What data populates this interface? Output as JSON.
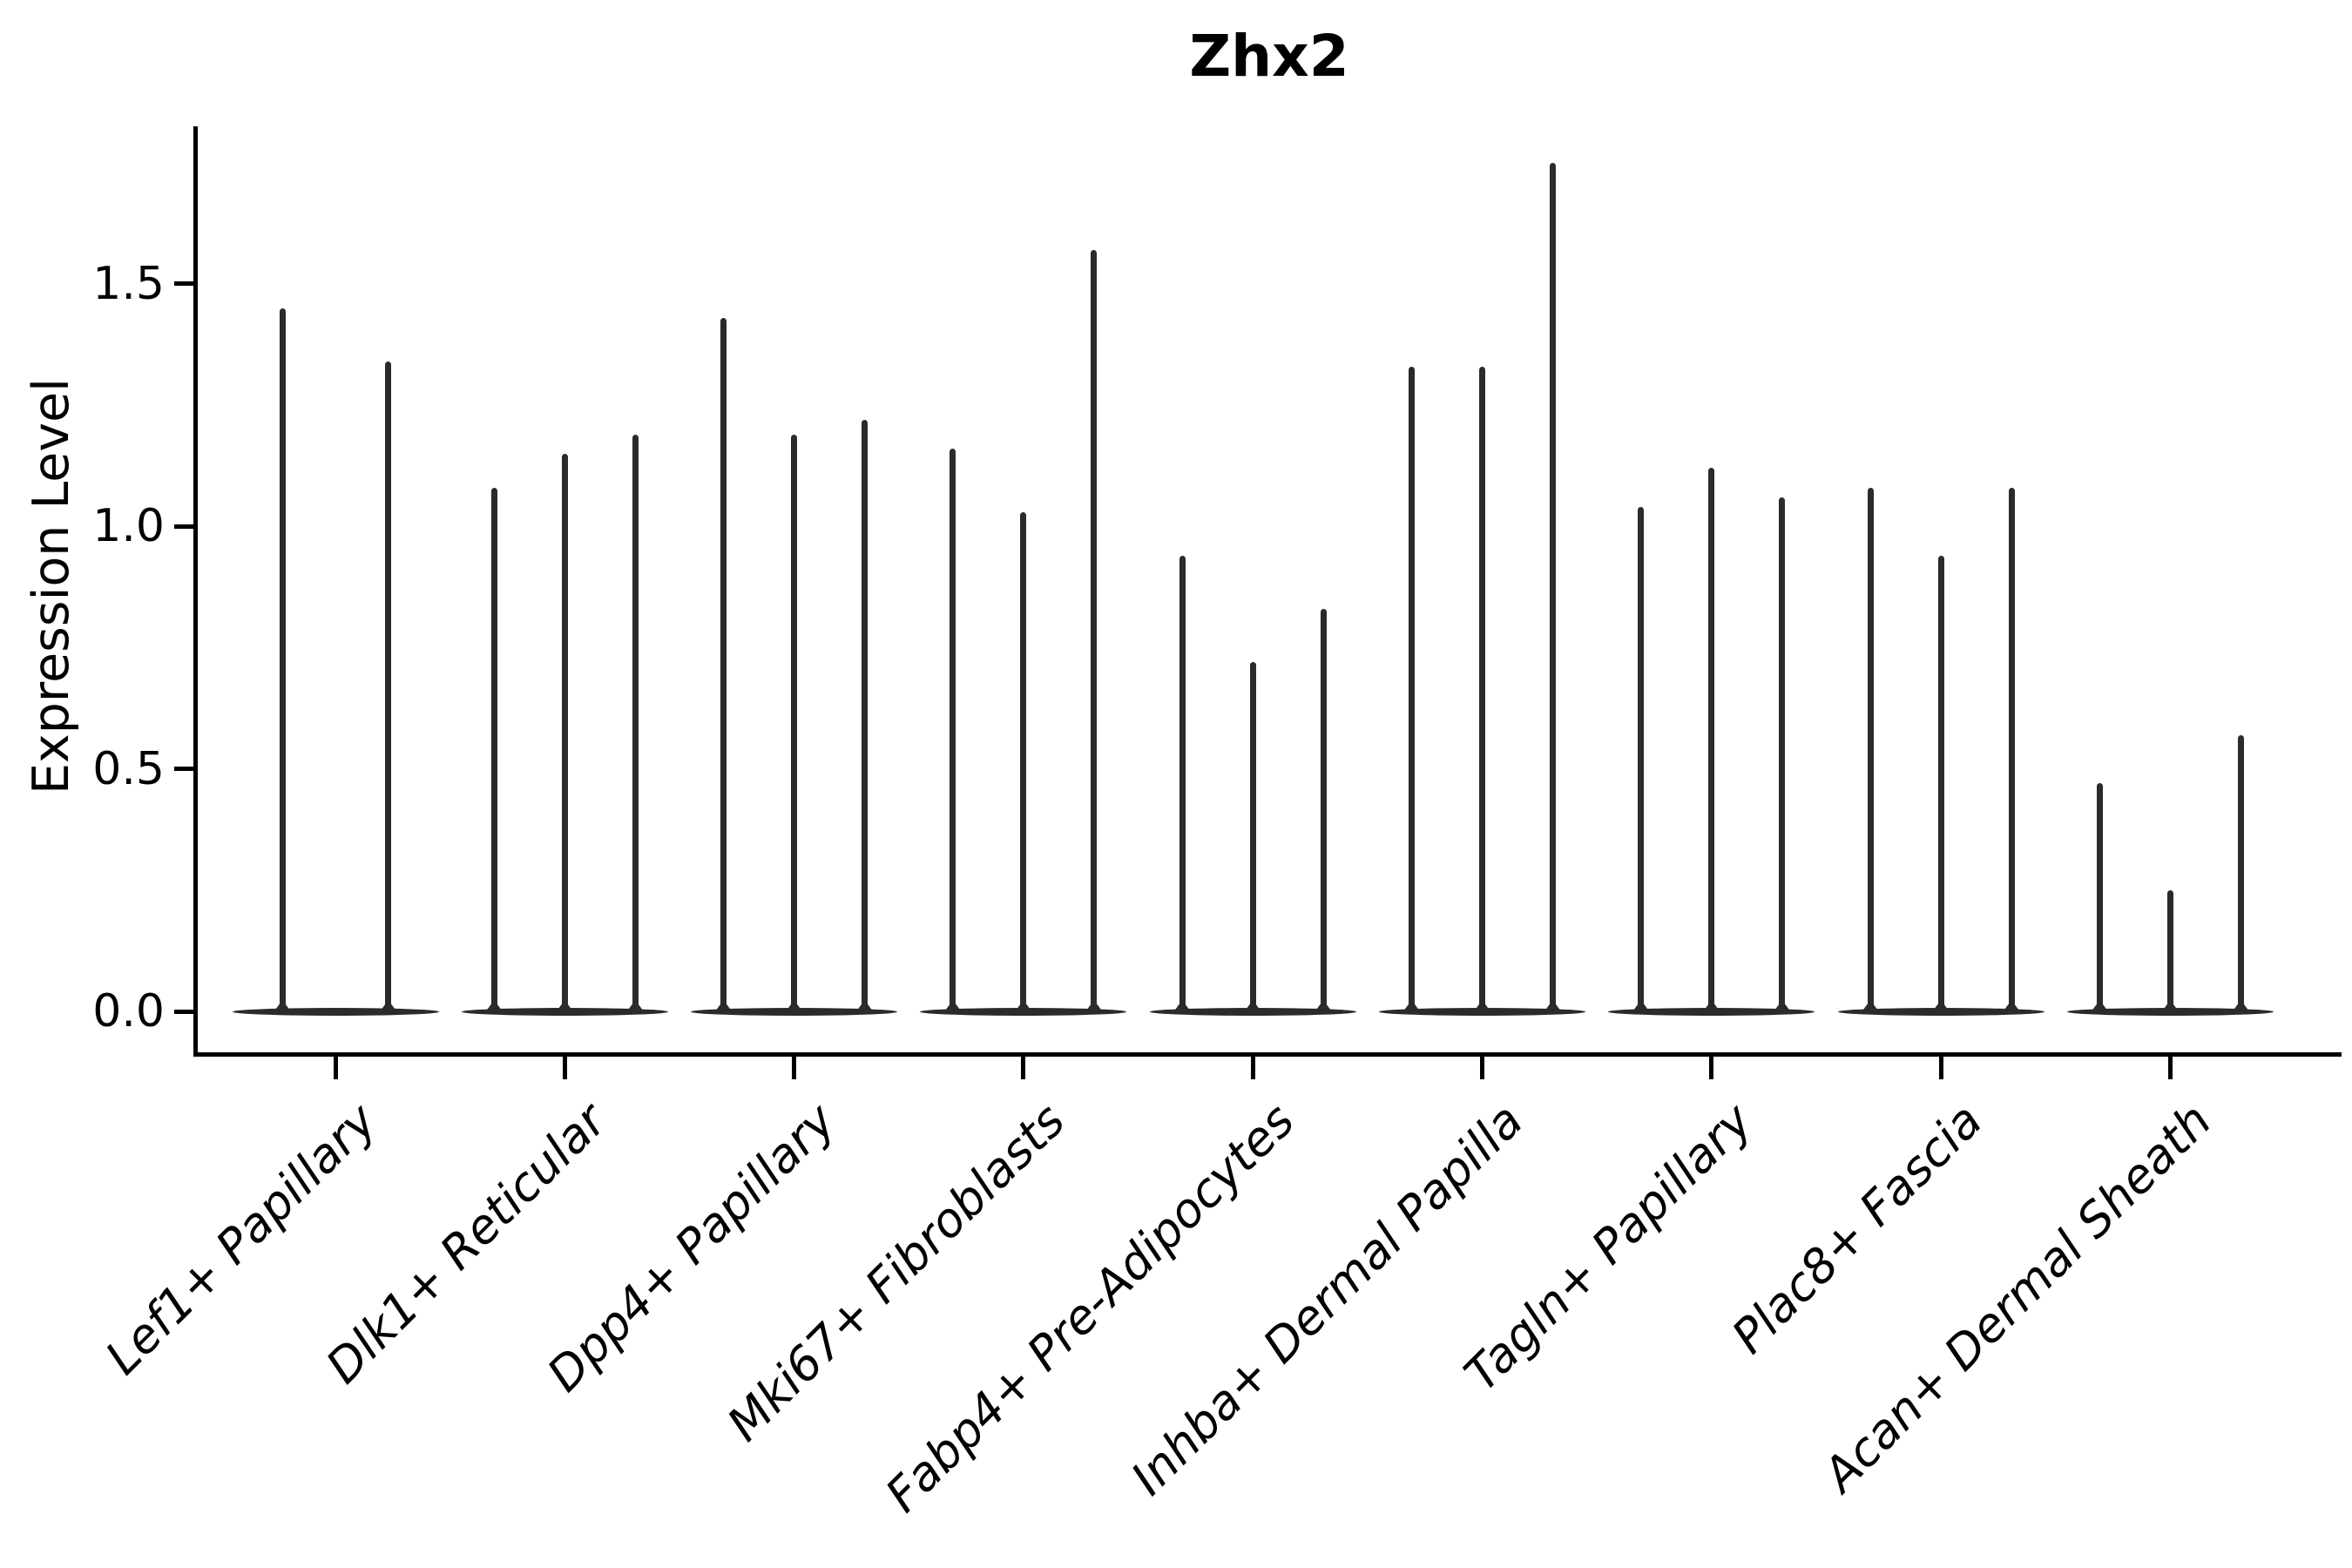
{
  "title": "Zhx2",
  "y_axis": {
    "label": "Expression Level",
    "tick_labels": [
      "0.0",
      "0.5",
      "1.0",
      "1.5"
    ]
  },
  "colors": {
    "violin": "#2b2b2b",
    "axis": "#000000",
    "background": "#ffffff"
  },
  "chart_data": {
    "type": "violin",
    "title": "Zhx2",
    "xlabel": "",
    "ylabel": "Expression Level",
    "yticks": [
      0.0,
      0.5,
      1.0,
      1.5
    ],
    "ylim": [
      -0.085,
      1.83
    ],
    "grid": false,
    "legend": "none",
    "description": "Single-gene expression violin plot; each category shows narrow violins concentrated at 0 with thin spikes reaching the maximum expression value.",
    "categories": [
      "Lef1+ Papillary",
      "Dlk1+ Reticular",
      "Dpp4+ Papillary",
      "Mki67+ Fibroblasts",
      "Fabp4+ Pre-Adipocytes",
      "Inhba+ Dermal Papilla",
      "Tagln+ Papillary",
      "Plac8+ Fascia",
      "Acan+ Dermal Sheath"
    ],
    "series": [
      {
        "category": "Lef1+ Papillary",
        "violin_maxima": [
          1.45,
          1.34
        ]
      },
      {
        "category": "Dlk1+ Reticular",
        "violin_maxima": [
          1.08,
          1.15,
          1.19
        ]
      },
      {
        "category": "Dpp4+ Papillary",
        "violin_maxima": [
          1.43,
          1.19,
          1.22
        ]
      },
      {
        "category": "Mki67+ Fibroblasts",
        "violin_maxima": [
          1.16,
          1.03,
          1.57
        ]
      },
      {
        "category": "Fabp4+ Pre-Adipocytes",
        "violin_maxima": [
          0.94,
          0.72,
          0.83
        ]
      },
      {
        "category": "Inhba+ Dermal Papilla",
        "violin_maxima": [
          1.33,
          1.33,
          1.75
        ]
      },
      {
        "category": "Tagln+ Papillary",
        "violin_maxima": [
          1.04,
          1.12,
          1.06
        ]
      },
      {
        "category": "Plac8+ Fascia",
        "violin_maxima": [
          1.08,
          0.94,
          1.08
        ]
      },
      {
        "category": "Acan+ Dermal Sheath",
        "violin_maxima": [
          0.47,
          0.25,
          0.57
        ]
      }
    ]
  }
}
